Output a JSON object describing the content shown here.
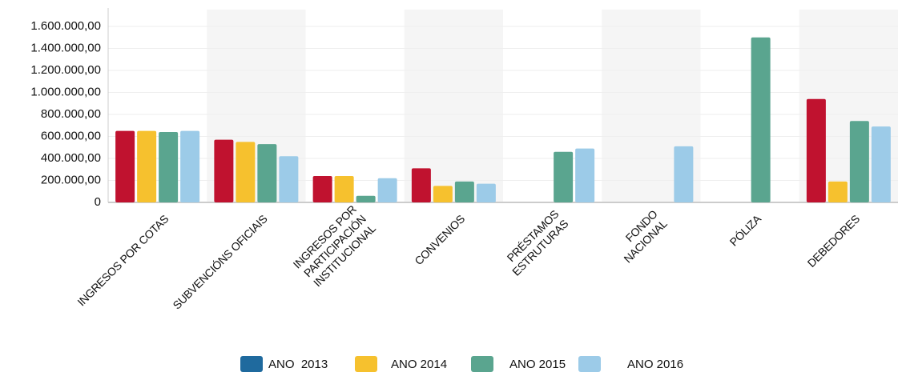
{
  "chart_data": {
    "type": "bar",
    "categories": [
      [
        "INGRESOS POR COTAS"
      ],
      [
        "SUBVENCIÓNS OFICIAIS"
      ],
      [
        "INGRESOS POR",
        "PARTICIPACIÓN",
        "INSTITUCIONAL"
      ],
      [
        "CONVENIOS"
      ],
      [
        "PRÉSTAMOS",
        "ESTRUTURAS"
      ],
      [
        "FONDO",
        "NACIONAL"
      ],
      [
        "PÓLIZA"
      ],
      [
        "DEBEDORES"
      ]
    ],
    "series": [
      {
        "name": "ANO  2013",
        "color": "#c0122f",
        "legend_color": "#1f6a9e",
        "values": [
          650000,
          570000,
          240000,
          310000,
          null,
          null,
          null,
          940000
        ]
      },
      {
        "name": "ANO 2014",
        "color": "#f6c12e",
        "values": [
          650000,
          550000,
          240000,
          150000,
          null,
          null,
          null,
          190000
        ]
      },
      {
        "name": "ANO 2015",
        "color": "#5aa58f",
        "values": [
          640000,
          530000,
          60000,
          190000,
          460000,
          null,
          1500000,
          740000
        ]
      },
      {
        "name": "ANO 2016",
        "color": "#9ccbe8",
        "values": [
          650000,
          420000,
          220000,
          170000,
          490000,
          510000,
          null,
          690000
        ]
      }
    ],
    "ylim": [
      0,
      1600000
    ],
    "yticks": [
      0,
      {
        "value": 200000,
        "label": "200.000,00"
      },
      {
        "value": 400000,
        "label": "400.000,00"
      },
      {
        "value": 600000,
        "label": "600.000,00"
      },
      {
        "value": 800000,
        "label": "800.000,00"
      },
      {
        "value": 1000000,
        "label": "1.000.000,00"
      },
      {
        "value": 1200000,
        "label": "1.200.000,00"
      },
      {
        "value": 1400000,
        "label": "1.400.000,00"
      },
      {
        "value": 1600000,
        "label": "1.600.000,00"
      }
    ],
    "grid": true
  }
}
